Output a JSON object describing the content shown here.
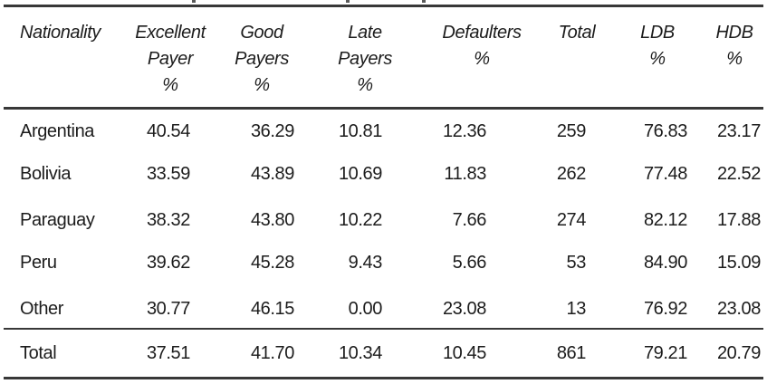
{
  "table": {
    "columns": [
      {
        "id": "nationality",
        "label": "Nationality"
      },
      {
        "id": "excellent_payer",
        "label": "Excellent\nPayer\n%"
      },
      {
        "id": "good_payers",
        "label": "Good\nPayers\n%"
      },
      {
        "id": "late_payers",
        "label": "Late\nPayers\n%"
      },
      {
        "id": "defaulters",
        "label": "Defaulters\n%"
      },
      {
        "id": "total",
        "label": "Total"
      },
      {
        "id": "ldb",
        "label": "LDB\n%"
      },
      {
        "id": "hdb",
        "label": "HDB\n%"
      }
    ],
    "rows": [
      {
        "label": "Argentina",
        "values": [
          "40.54",
          "36.29",
          "10.81",
          "12.36",
          "259",
          "76.83",
          "23.17"
        ]
      },
      {
        "label": "Bolivia",
        "values": [
          "33.59",
          "43.89",
          "10.69",
          "11.83",
          "262",
          "77.48",
          "22.52"
        ]
      },
      {
        "label": "Paraguay",
        "values": [
          "38.32",
          "43.80",
          "10.22",
          "7.66",
          "274",
          "82.12",
          "17.88"
        ]
      },
      {
        "label": "Peru",
        "values": [
          "39.62",
          "45.28",
          "9.43",
          "5.66",
          "53",
          "84.90",
          "15.09"
        ]
      },
      {
        "label": "Other",
        "values": [
          "30.77",
          "46.15",
          "0.00",
          "23.08",
          "13",
          "76.92",
          "23.08"
        ]
      }
    ],
    "footer": {
      "label": "Total",
      "values": [
        "37.51",
        "41.70",
        "10.34",
        "10.45",
        "861",
        "79.21",
        "20.79"
      ]
    }
  },
  "colors": {
    "background": "#ffffff",
    "text": "#1c1c1c",
    "rule": "#383838"
  }
}
